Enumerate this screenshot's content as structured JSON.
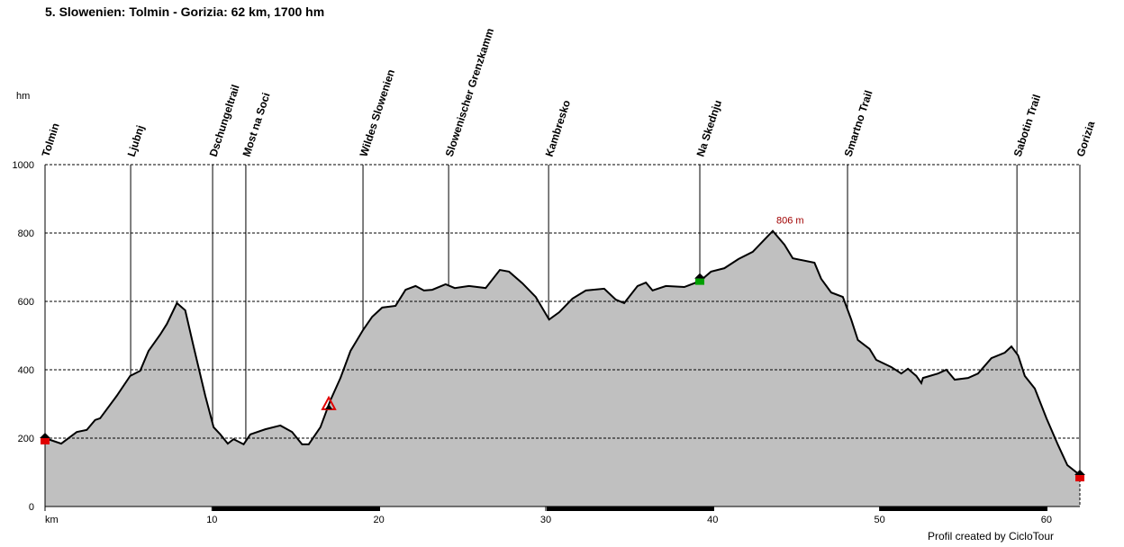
{
  "chart_data": {
    "type": "area",
    "title": "5. Slowenien: Tolmin - Gorizia: 62 km, 1700 hm",
    "y_label": "hm",
    "footer": "Profil created by CicloTour",
    "x": [
      0,
      0.97,
      1.9,
      2.5,
      3.0,
      3.3,
      4.3,
      5.1,
      5.7,
      6.2,
      6.9,
      7.3,
      7.9,
      8.4,
      8.9,
      9.6,
      10.1,
      10.5,
      10.95,
      11.3,
      11.9,
      12.3,
      13.2,
      14.1,
      14.8,
      15.4,
      15.8,
      16.5,
      17.1,
      17.7,
      18.3,
      19.05,
      19.6,
      20.2,
      21.0,
      21.6,
      22.2,
      22.7,
      23.2,
      24.0,
      24.55,
      25.4,
      26.4,
      27.25,
      27.8,
      28.6,
      29.4,
      30.2,
      30.8,
      31.6,
      32.4,
      33.5,
      34.2,
      34.7,
      35.5,
      36.0,
      36.4,
      37.2,
      38.3,
      38.9,
      39.4,
      39.9,
      40.7,
      41.55,
      42.4,
      43.6,
      44.3,
      44.8,
      46.1,
      46.5,
      47.1,
      47.8,
      48.3,
      48.7,
      49.4,
      49.8,
      50.7,
      51.3,
      51.7,
      52.2,
      52.5,
      52.6,
      53.5,
      54.0,
      54.5,
      55.3,
      55.9,
      56.7,
      57.5,
      57.9,
      58.3,
      58.7,
      59.3,
      60.0,
      60.7,
      61.25,
      62
    ],
    "values": [
      200,
      184,
      218,
      224,
      253,
      258,
      324,
      382,
      397,
      455,
      503,
      534,
      595,
      574,
      468,
      324,
      232,
      211,
      184,
      197,
      182,
      211,
      226,
      237,
      218,
      182,
      182,
      232,
      311,
      376,
      455,
      516,
      555,
      582,
      587,
      634,
      645,
      632,
      634,
      650,
      639,
      645,
      639,
      692,
      687,
      653,
      613,
      547,
      568,
      608,
      632,
      637,
      605,
      595,
      645,
      655,
      632,
      645,
      642,
      653,
      666,
      687,
      697,
      724,
      745,
      806,
      766,
      726,
      713,
      666,
      626,
      613,
      547,
      487,
      461,
      429,
      408,
      389,
      403,
      382,
      361,
      376,
      389,
      400,
      371,
      376,
      389,
      434,
      450,
      468,
      442,
      382,
      345,
      258,
      179,
      121,
      92
    ],
    "color": "#c0c0c0",
    "waypoints": [
      {
        "name": "Tolmin",
        "km": 0
      },
      {
        "name": "Ljubnj",
        "km": 5.13
      },
      {
        "name": "Dschungeltrail",
        "km": 10.04
      },
      {
        "name": "Most na Soci",
        "km": 12.03
      },
      {
        "name": "Wildes Slowenien",
        "km": 19.05
      },
      {
        "name": "Slowenischer Grenzkamm",
        "km": 24.18
      },
      {
        "name": "Kambresko",
        "km": 30.17
      },
      {
        "name": "Na Skednju",
        "km": 39.23
      },
      {
        "name": "Smartno Trail",
        "km": 48.08
      },
      {
        "name": "Sabotin Trail",
        "km": 58.23
      },
      {
        "name": "Gorizia",
        "km": 62
      }
    ],
    "annotation": {
      "text": "806 m",
      "x": 43.6,
      "y": 806
    },
    "xlim": [
      0,
      62
    ],
    "xticks": [
      {
        "value": 0,
        "label": "km"
      },
      10,
      20,
      30,
      40,
      50,
      60
    ],
    "ylim": [
      0,
      1000
    ],
    "yticks": [
      0,
      200,
      400,
      600,
      800,
      1000
    ],
    "grid": true
  }
}
